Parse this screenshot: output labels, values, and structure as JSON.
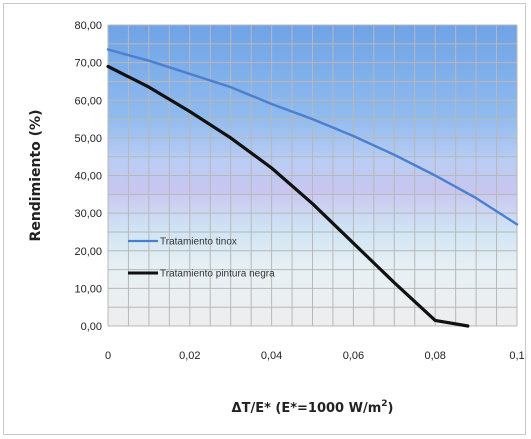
{
  "chart_data": {
    "type": "line",
    "xlabel": "ΔT/E*   (E*=1000 W/m²)",
    "ylabel": "Rendimiento (%)",
    "xlim": [
      0,
      0.1
    ],
    "ylim": [
      0,
      80
    ],
    "x_ticks": [
      "0",
      "0,02",
      "0,04",
      "0,06",
      "0,08",
      "0,1"
    ],
    "y_ticks": [
      "0,00",
      "10,00",
      "20,00",
      "30,00",
      "40,00",
      "50,00",
      "60,00",
      "70,00",
      "80,00"
    ],
    "grid": true,
    "legend_position": "left",
    "series": [
      {
        "name": "Tratamiento tinox",
        "color": "#4a7fd0",
        "x": [
          0,
          0.01,
          0.02,
          0.03,
          0.04,
          0.05,
          0.06,
          0.07,
          0.08,
          0.09,
          0.1
        ],
        "y": [
          73.5,
          70.5,
          67.0,
          63.5,
          59.0,
          55.0,
          50.5,
          45.5,
          40.0,
          34.0,
          27.0
        ]
      },
      {
        "name": "Tratamiento pintura negra",
        "color": "#111111",
        "x": [
          0,
          0.01,
          0.02,
          0.03,
          0.04,
          0.05,
          0.06,
          0.07,
          0.08,
          0.088
        ],
        "y": [
          69.0,
          63.5,
          57.0,
          50.0,
          42.0,
          32.5,
          22.0,
          11.5,
          1.5,
          0.0
        ]
      }
    ]
  }
}
